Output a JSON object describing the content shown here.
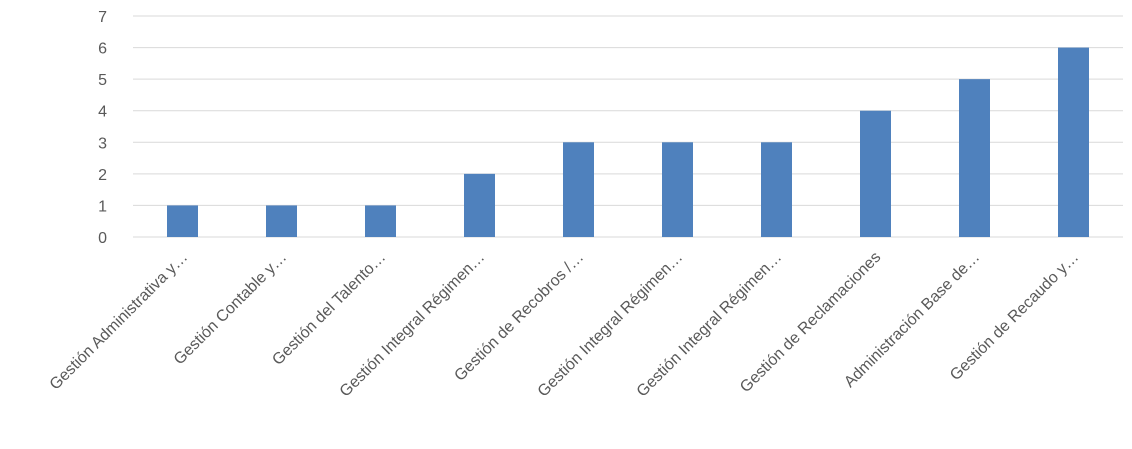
{
  "chart_data": {
    "type": "bar",
    "title": "",
    "xlabel": "",
    "ylabel": "",
    "categories": [
      "Gestión Administrativa y…",
      "Gestión Contable y…",
      "Gestión del Talento…",
      "Gestión Integral Régimen…",
      "Gestión de Recobros /…",
      "Gestión Integral Régimen…",
      "Gestión Integral Régimen…",
      "Gestión de Reclamaciones",
      "Administración Base de…",
      "Gestión de Recaudo y…"
    ],
    "values": [
      1,
      1,
      1,
      2,
      3,
      3,
      3,
      4,
      5,
      6
    ],
    "ylim": [
      0,
      7
    ],
    "yticks": [
      "0",
      "1",
      "2",
      "3",
      "4",
      "5",
      "6",
      "7"
    ],
    "grid": true,
    "legend": "none",
    "bar_color": "#4f81bd",
    "grid_color": "#d9d9d9",
    "text_color": "#595959"
  }
}
